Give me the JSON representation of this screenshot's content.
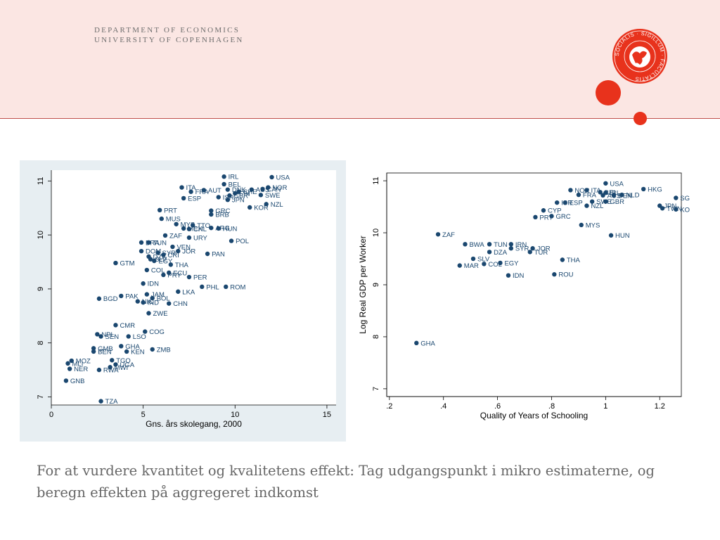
{
  "header": {
    "department_line1": "DEPARTMENT OF ECONOMICS",
    "department_line2": "UNIVERSITY OF COPENHAGEN",
    "seal_text": "SOCIALIS · SIGILLUM · FACULTATIS"
  },
  "colors": {
    "accent": "#e8321c",
    "header_bg": "#fbe6e3",
    "marker": "#1a476f",
    "panel_bg": "#e7eef2"
  },
  "caption": "For at vurdere kvantitet og kvalitetens effekt: Tag udgangspunkt i mikro estimaterne, og beregn effekten på aggregeret indkomst",
  "chart_data": [
    {
      "type": "scatter",
      "title": "",
      "xlabel": "Gns. års skolegang, 2000",
      "ylabel": "",
      "xlim": [
        0,
        15.5
      ],
      "ylim": [
        6.85,
        11.2
      ],
      "xticks": [
        0,
        5,
        10,
        15
      ],
      "yticks": [
        7,
        8,
        9,
        10,
        11
      ],
      "xtick_labels": [
        "0",
        "5",
        "10",
        "15"
      ],
      "ytick_labels": [
        "7",
        "8",
        "9",
        "10",
        "11"
      ],
      "grid": false,
      "points": [
        {
          "label": "IRL",
          "x": 9.4,
          "y": 11.08
        },
        {
          "label": "USA",
          "x": 12.0,
          "y": 11.07
        },
        {
          "label": "BEL",
          "x": 9.4,
          "y": 10.94
        },
        {
          "label": "NOR",
          "x": 11.8,
          "y": 10.88
        },
        {
          "label": "ITA",
          "x": 7.1,
          "y": 10.88
        },
        {
          "label": "DNK",
          "x": 9.6,
          "y": 10.84
        },
        {
          "label": "AUS",
          "x": 10.9,
          "y": 10.84
        },
        {
          "label": "CAN",
          "x": 11.5,
          "y": 10.85
        },
        {
          "label": "FRA",
          "x": 7.6,
          "y": 10.8
        },
        {
          "label": "AUT",
          "x": 8.3,
          "y": 10.83
        },
        {
          "label": "CHE",
          "x": 10.2,
          "y": 10.8
        },
        {
          "label": "FIN",
          "x": 10.0,
          "y": 10.77
        },
        {
          "label": "GBR",
          "x": 9.7,
          "y": 10.73
        },
        {
          "label": "SWE",
          "x": 11.4,
          "y": 10.74
        },
        {
          "label": "ESP",
          "x": 7.2,
          "y": 10.68
        },
        {
          "label": "ISR",
          "x": 9.1,
          "y": 10.7
        },
        {
          "label": "JPN",
          "x": 9.6,
          "y": 10.65
        },
        {
          "label": "NZL",
          "x": 11.7,
          "y": 10.57
        },
        {
          "label": "KOR",
          "x": 10.8,
          "y": 10.51
        },
        {
          "label": "PRT",
          "x": 5.9,
          "y": 10.46
        },
        {
          "label": "GRC",
          "x": 8.7,
          "y": 10.45
        },
        {
          "label": "BRB",
          "x": 8.7,
          "y": 10.38
        },
        {
          "label": "MUS",
          "x": 6.0,
          "y": 10.3
        },
        {
          "label": "MYS",
          "x": 6.8,
          "y": 10.2
        },
        {
          "label": "TTO",
          "x": 7.7,
          "y": 10.18
        },
        {
          "label": "MEX",
          "x": 7.2,
          "y": 10.12
        },
        {
          "label": "ARG",
          "x": 8.7,
          "y": 10.13
        },
        {
          "label": "HUN",
          "x": 9.1,
          "y": 10.12
        },
        {
          "label": "CHL",
          "x": 7.5,
          "y": 10.11
        },
        {
          "label": "ZAF",
          "x": 6.2,
          "y": 9.99
        },
        {
          "label": "URY",
          "x": 7.5,
          "y": 9.95
        },
        {
          "label": "POL",
          "x": 9.8,
          "y": 9.89
        },
        {
          "label": "BRA",
          "x": 4.9,
          "y": 9.86
        },
        {
          "label": "TUN",
          "x": 5.3,
          "y": 9.86
        },
        {
          "label": "VEN",
          "x": 6.6,
          "y": 9.78
        },
        {
          "label": "DOM",
          "x": 4.9,
          "y": 9.7
        },
        {
          "label": "SYR",
          "x": 5.8,
          "y": 9.67
        },
        {
          "label": "JOR",
          "x": 6.9,
          "y": 9.7
        },
        {
          "label": "PAN",
          "x": 8.5,
          "y": 9.65
        },
        {
          "label": "CRI",
          "x": 6.1,
          "y": 9.63
        },
        {
          "label": "DZA",
          "x": 5.3,
          "y": 9.6
        },
        {
          "label": "SLV",
          "x": 5.4,
          "y": 9.55
        },
        {
          "label": "EGY",
          "x": 5.6,
          "y": 9.52
        },
        {
          "label": "GTM",
          "x": 3.5,
          "y": 9.48
        },
        {
          "label": "THA",
          "x": 6.5,
          "y": 9.45
        },
        {
          "label": "COL",
          "x": 5.2,
          "y": 9.35
        },
        {
          "label": "ECU",
          "x": 6.4,
          "y": 9.3
        },
        {
          "label": "PRY",
          "x": 6.1,
          "y": 9.26
        },
        {
          "label": "PER",
          "x": 7.5,
          "y": 9.22
        },
        {
          "label": "IDN",
          "x": 5.0,
          "y": 9.1
        },
        {
          "label": "PHL",
          "x": 8.2,
          "y": 9.04
        },
        {
          "label": "ROM",
          "x": 9.5,
          "y": 9.04
        },
        {
          "label": "LKA",
          "x": 6.9,
          "y": 8.95
        },
        {
          "label": "JAM",
          "x": 5.2,
          "y": 8.9
        },
        {
          "label": "PAK",
          "x": 3.8,
          "y": 8.87
        },
        {
          "label": "BOL",
          "x": 5.5,
          "y": 8.83
        },
        {
          "label": "BGD",
          "x": 2.6,
          "y": 8.82
        },
        {
          "label": "NIC",
          "x": 4.7,
          "y": 8.77
        },
        {
          "label": "IND",
          "x": 5.0,
          "y": 8.75
        },
        {
          "label": "CHN",
          "x": 6.4,
          "y": 8.73
        },
        {
          "label": "ZWE",
          "x": 5.3,
          "y": 8.55
        },
        {
          "label": "CMR",
          "x": 3.5,
          "y": 8.33
        },
        {
          "label": "COG",
          "x": 5.1,
          "y": 8.21
        },
        {
          "label": "NPL",
          "x": 2.5,
          "y": 8.16
        },
        {
          "label": "SEN",
          "x": 2.7,
          "y": 8.12
        },
        {
          "label": "LSO",
          "x": 4.2,
          "y": 8.12
        },
        {
          "label": "GHA",
          "x": 3.8,
          "y": 7.94
        },
        {
          "label": "GMB",
          "x": 2.3,
          "y": 7.9
        },
        {
          "label": "ZMB",
          "x": 5.5,
          "y": 7.88
        },
        {
          "label": "BEN",
          "x": 2.3,
          "y": 7.84
        },
        {
          "label": "KEN",
          "x": 4.1,
          "y": 7.84
        },
        {
          "label": "TGO",
          "x": 3.3,
          "y": 7.68
        },
        {
          "label": "MOZ",
          "x": 1.1,
          "y": 7.67
        },
        {
          "label": "MLI",
          "x": 0.9,
          "y": 7.62
        },
        {
          "label": "UGA",
          "x": 3.5,
          "y": 7.6
        },
        {
          "label": "MWI",
          "x": 3.2,
          "y": 7.55
        },
        {
          "label": "NER",
          "x": 1.0,
          "y": 7.52
        },
        {
          "label": "RWA",
          "x": 2.6,
          "y": 7.5
        },
        {
          "label": "GNB",
          "x": 0.8,
          "y": 7.3
        },
        {
          "label": "TZA",
          "x": 2.7,
          "y": 6.92
        }
      ]
    },
    {
      "type": "scatter",
      "title": "",
      "xlabel": "Quality of Years of Schooling",
      "ylabel": "Log Real GDP per Worker",
      "xlim": [
        0.19,
        1.28
      ],
      "ylim": [
        6.85,
        11.15
      ],
      "xticks": [
        0.2,
        0.4,
        0.6,
        0.8,
        1.0,
        1.2
      ],
      "yticks": [
        7,
        8,
        9,
        10,
        11
      ],
      "xtick_labels": [
        ".2",
        ".4",
        ".6",
        ".8",
        "1",
        "1.2"
      ],
      "ytick_labels": [
        "7",
        "8",
        "9",
        "10",
        "11"
      ],
      "grid": false,
      "points": [
        {
          "label": "USA",
          "x": 1.0,
          "y": 10.95
        },
        {
          "label": "HKG",
          "x": 1.14,
          "y": 10.84
        },
        {
          "label": "NOR",
          "x": 0.87,
          "y": 10.82
        },
        {
          "label": "ITA",
          "x": 0.93,
          "y": 10.82
        },
        {
          "label": "BEL",
          "x": 0.98,
          "y": 10.78
        },
        {
          "label": "IRL",
          "x": 1.0,
          "y": 10.77
        },
        {
          "label": "NLD",
          "x": 1.06,
          "y": 10.73
        },
        {
          "label": "FRA",
          "x": 0.9,
          "y": 10.73
        },
        {
          "label": "DEN",
          "x": 1.03,
          "y": 10.72
        },
        {
          "label": "AUS",
          "x": 0.99,
          "y": 10.72
        },
        {
          "label": "SGP",
          "x": 1.26,
          "y": 10.67
        },
        {
          "label": "ISR",
          "x": 0.82,
          "y": 10.58
        },
        {
          "label": "ESP",
          "x": 0.85,
          "y": 10.58
        },
        {
          "label": "SWE",
          "x": 0.95,
          "y": 10.6
        },
        {
          "label": "GBR",
          "x": 1.0,
          "y": 10.6
        },
        {
          "label": "NZL",
          "x": 0.93,
          "y": 10.52
        },
        {
          "label": "JPN",
          "x": 1.2,
          "y": 10.52
        },
        {
          "label": "TWN",
          "x": 1.21,
          "y": 10.47
        },
        {
          "label": "KOR",
          "x": 1.26,
          "y": 10.45
        },
        {
          "label": "CYP",
          "x": 0.77,
          "y": 10.43
        },
        {
          "label": "PRT",
          "x": 0.74,
          "y": 10.3
        },
        {
          "label": "GRC",
          "x": 0.8,
          "y": 10.32
        },
        {
          "label": "MYS",
          "x": 0.91,
          "y": 10.15
        },
        {
          "label": "ZAF",
          "x": 0.38,
          "y": 9.97
        },
        {
          "label": "HUN",
          "x": 1.02,
          "y": 9.95
        },
        {
          "label": "BWA",
          "x": 0.48,
          "y": 9.78
        },
        {
          "label": "TUN",
          "x": 0.57,
          "y": 9.78
        },
        {
          "label": "IRN",
          "x": 0.65,
          "y": 9.78
        },
        {
          "label": "SYR",
          "x": 0.65,
          "y": 9.7
        },
        {
          "label": "JOR",
          "x": 0.73,
          "y": 9.7
        },
        {
          "label": "TUR",
          "x": 0.72,
          "y": 9.63
        },
        {
          "label": "DZA",
          "x": 0.57,
          "y": 9.63
        },
        {
          "label": "SLV",
          "x": 0.51,
          "y": 9.5
        },
        {
          "label": "THA",
          "x": 0.84,
          "y": 9.48
        },
        {
          "label": "COL",
          "x": 0.55,
          "y": 9.4
        },
        {
          "label": "EGY",
          "x": 0.61,
          "y": 9.42
        },
        {
          "label": "MAR",
          "x": 0.46,
          "y": 9.37
        },
        {
          "label": "ROU",
          "x": 0.81,
          "y": 9.2
        },
        {
          "label": "IDN",
          "x": 0.64,
          "y": 9.18
        },
        {
          "label": "GHA",
          "x": 0.3,
          "y": 7.88
        }
      ]
    }
  ]
}
